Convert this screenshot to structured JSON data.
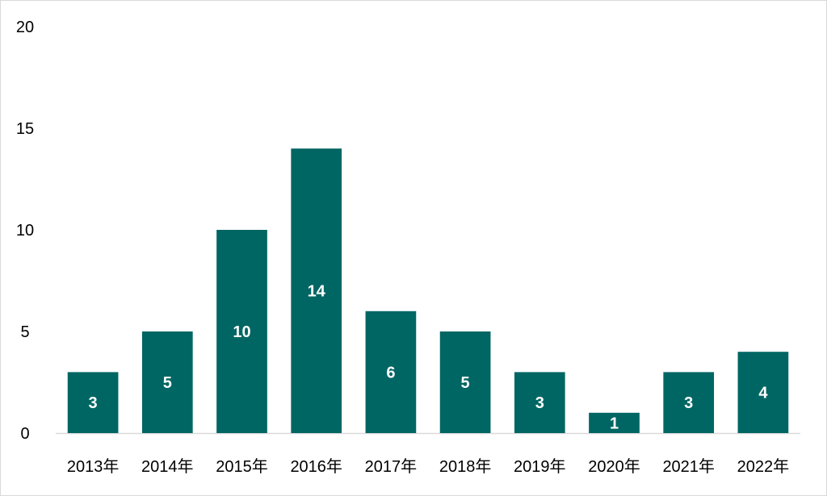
{
  "colors": {
    "bar": "#006663",
    "axis": "#d9d9d9",
    "text": "#000000",
    "data_label": "#ffffff"
  },
  "chart_data": {
    "type": "bar",
    "title": "",
    "xlabel": "",
    "ylabel": "",
    "categories": [
      "2013年",
      "2014年",
      "2015年",
      "2016年",
      "2017年",
      "2018年",
      "2019年",
      "2020年",
      "2021年",
      "2022年"
    ],
    "values": [
      3,
      5,
      10,
      14,
      6,
      5,
      3,
      1,
      3,
      4
    ],
    "ylim": [
      0,
      20
    ],
    "yticks": [
      0,
      5,
      10,
      15,
      20
    ],
    "grid": false,
    "legend": "none",
    "data_labels": true
  }
}
